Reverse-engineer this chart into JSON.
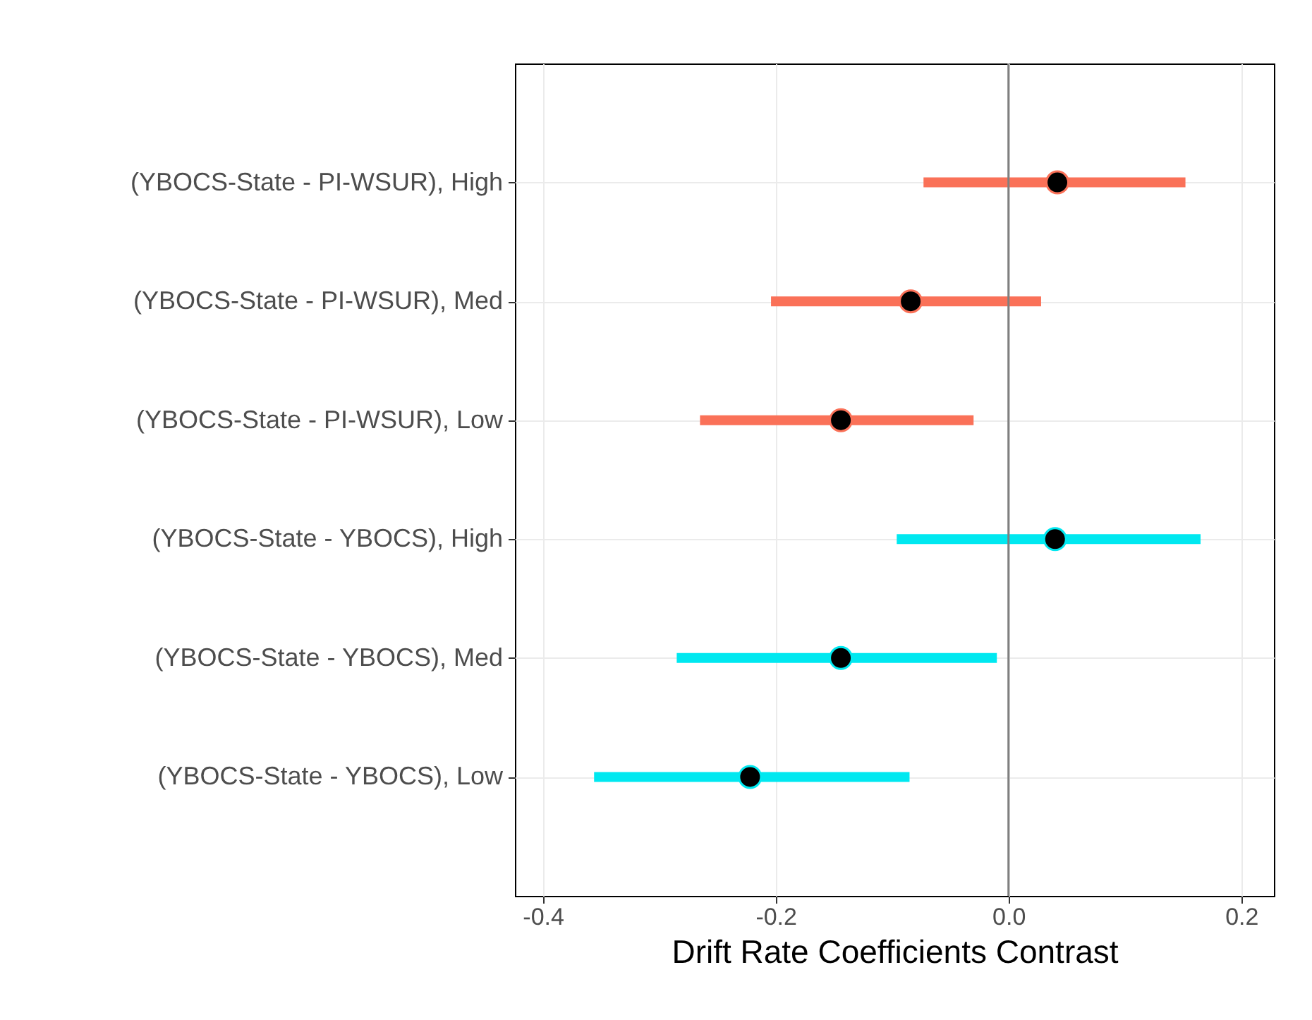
{
  "chart_data": {
    "type": "scatter",
    "orientation": "horizontal",
    "xlabel": "Drift Rate Coefficients Contrast",
    "categories": [
      "(YBOCS-State - PI-WSUR), High",
      "(YBOCS-State - PI-WSUR), Med",
      "(YBOCS-State - PI-WSUR), Low",
      "(YBOCS-State - YBOCS), High",
      "(YBOCS-State - YBOCS), Med",
      "(YBOCS-State - YBOCS), Low"
    ],
    "series": [
      {
        "color": "#fa7158",
        "values": [
          0.042,
          -0.084,
          -0.144,
          null,
          null,
          null
        ],
        "errors": [
          [
            -0.073,
            0.152
          ],
          [
            -0.204,
            0.028
          ],
          [
            -0.265,
            -0.03
          ],
          null,
          null,
          null
        ]
      },
      {
        "color": "#00e8f0",
        "values": [
          null,
          null,
          null,
          0.04,
          -0.144,
          -0.222
        ],
        "errors": [
          null,
          null,
          null,
          [
            -0.096,
            0.165
          ],
          [
            -0.285,
            -0.01
          ],
          [
            -0.356,
            -0.085
          ]
        ]
      }
    ],
    "xlim": [
      -0.424,
      0.228
    ],
    "xticks": [
      {
        "value": -0.4,
        "label": "-0.4"
      },
      {
        "value": -0.2,
        "label": "-0.2"
      },
      {
        "value": 0,
        "label": "0.0"
      },
      {
        "value": 0.2,
        "label": "0.2"
      }
    ],
    "grid": true,
    "marker": "circle",
    "ref_lines": [
      {
        "axis": "x",
        "value": 0,
        "color": "#7f7f7f"
      }
    ]
  }
}
